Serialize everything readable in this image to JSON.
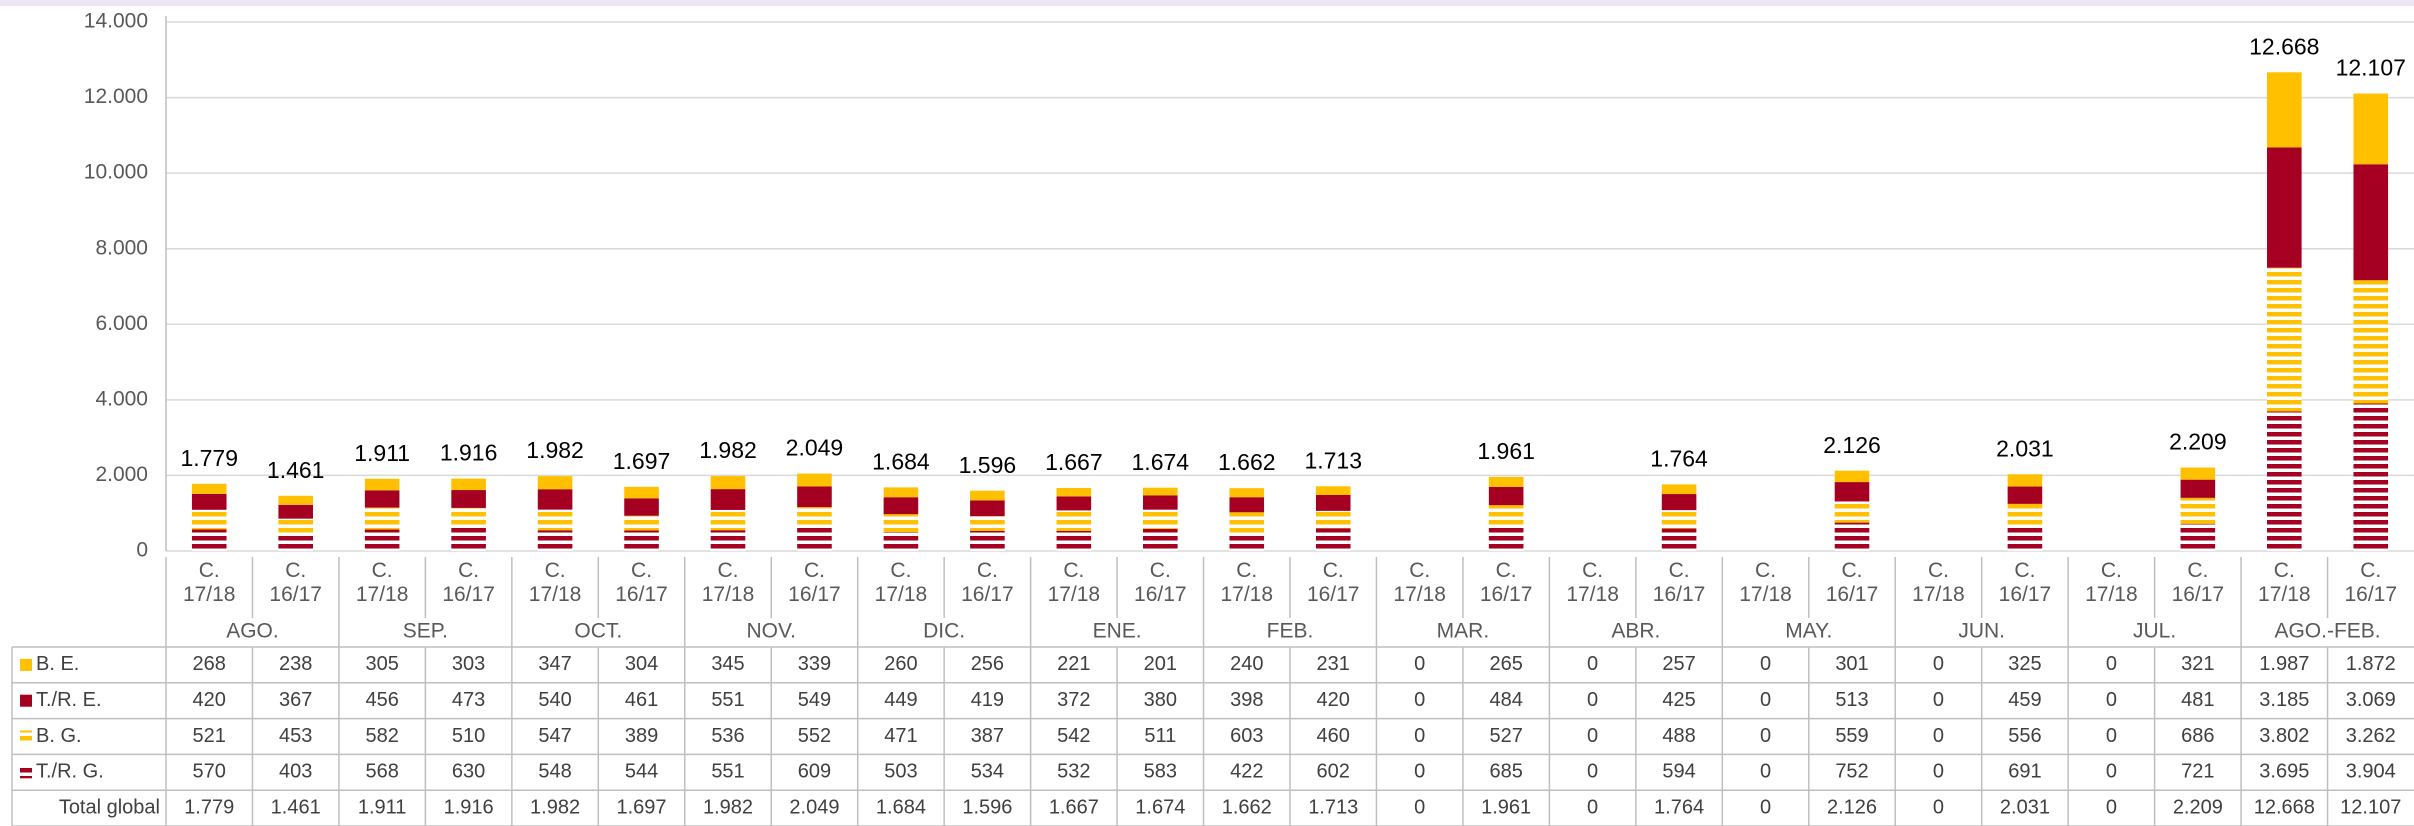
{
  "chart_data": {
    "type": "stacked_bar",
    "categories": [
      "C. 17/18",
      "C. 16/17",
      "C. 17/18",
      "C. 16/17",
      "C. 17/18",
      "C. 16/17",
      "C. 17/18",
      "C. 16/17",
      "C. 17/18",
      "C. 16/17",
      "C. 17/18",
      "C. 16/17",
      "C. 17/18",
      "C. 16/17",
      "C. 17/18",
      "C. 16/17",
      "C. 17/18",
      "C. 16/17",
      "C. 17/18",
      "C. 16/17",
      "C. 17/18",
      "C. 16/17",
      "C. 17/18",
      "C. 16/17",
      "C. 17/18",
      "C. 16/17"
    ],
    "groups": [
      "AGO.",
      "SEP.",
      "OCT.",
      "NOV.",
      "DIC.",
      "ENE.",
      "FEB.",
      "MAR.",
      "ABR.",
      "MAY.",
      "JUN.",
      "JUL.",
      "AGO.-FEB."
    ],
    "series": [
      {
        "name": "B. E.",
        "color": "#FFC000",
        "hatch": "none",
        "values": [
          268,
          238,
          305,
          303,
          347,
          304,
          345,
          339,
          260,
          256,
          221,
          201,
          240,
          231,
          0,
          265,
          0,
          257,
          0,
          301,
          0,
          325,
          0,
          321,
          1987,
          1872
        ],
        "value_labels": [
          "268",
          "238",
          "305",
          "303",
          "347",
          "304",
          "345",
          "339",
          "260",
          "256",
          "221",
          "201",
          "240",
          "231",
          "0",
          "265",
          "0",
          "257",
          "0",
          "301",
          "0",
          "325",
          "0",
          "321",
          "1.987",
          "1.872"
        ]
      },
      {
        "name": "T./R. E.",
        "color": "#A50021",
        "hatch": "none",
        "values": [
          420,
          367,
          456,
          473,
          540,
          461,
          551,
          549,
          449,
          419,
          372,
          380,
          398,
          420,
          0,
          484,
          0,
          425,
          0,
          513,
          0,
          459,
          0,
          481,
          3185,
          3069
        ],
        "value_labels": [
          "420",
          "367",
          "456",
          "473",
          "540",
          "461",
          "551",
          "549",
          "449",
          "419",
          "372",
          "380",
          "398",
          "420",
          "0",
          "484",
          "0",
          "425",
          "0",
          "513",
          "0",
          "459",
          "0",
          "481",
          "3.185",
          "3.069"
        ]
      },
      {
        "name": "B. G.",
        "color": "#FFC000",
        "hatch": "horizontal",
        "values": [
          521,
          453,
          582,
          510,
          547,
          389,
          536,
          552,
          471,
          387,
          542,
          511,
          603,
          460,
          0,
          527,
          0,
          488,
          0,
          559,
          0,
          556,
          0,
          686,
          3802,
          3262
        ],
        "value_labels": [
          "521",
          "453",
          "582",
          "510",
          "547",
          "389",
          "536",
          "552",
          "471",
          "387",
          "542",
          "511",
          "603",
          "460",
          "0",
          "527",
          "0",
          "488",
          "0",
          "559",
          "0",
          "556",
          "0",
          "686",
          "3.802",
          "3.262"
        ]
      },
      {
        "name": "T./R. G.",
        "color": "#A50021",
        "hatch": "horizontal",
        "values": [
          570,
          403,
          568,
          630,
          548,
          544,
          551,
          609,
          503,
          534,
          532,
          583,
          422,
          602,
          0,
          685,
          0,
          594,
          0,
          752,
          0,
          691,
          0,
          721,
          3695,
          3904
        ],
        "value_labels": [
          "570",
          "403",
          "568",
          "630",
          "548",
          "544",
          "551",
          "609",
          "503",
          "534",
          "532",
          "583",
          "422",
          "602",
          "0",
          "685",
          "0",
          "594",
          "0",
          "752",
          "0",
          "691",
          "0",
          "721",
          "3.695",
          "3.904"
        ]
      }
    ],
    "total": {
      "name": "Total global",
      "values": [
        1779,
        1461,
        1911,
        1916,
        1982,
        1697,
        1982,
        2049,
        1684,
        1596,
        1667,
        1674,
        1662,
        1713,
        0,
        1961,
        0,
        1764,
        0,
        2126,
        0,
        2031,
        0,
        2209,
        12668,
        12107
      ],
      "value_labels": [
        "1.779",
        "1.461",
        "1.911",
        "1.916",
        "1.982",
        "1.697",
        "1.982",
        "2.049",
        "1.684",
        "1.596",
        "1.667",
        "1.674",
        "1.662",
        "1.713",
        "0",
        "1.961",
        "0",
        "1.764",
        "0",
        "2.126",
        "0",
        "2.031",
        "0",
        "2.209",
        "12.668",
        "12.107"
      ]
    },
    "ylim": [
      0,
      14000
    ],
    "yticks": [
      0,
      {
        "value": 2000,
        "label": "2.000"
      },
      {
        "value": 4000,
        "label": "4.000"
      },
      {
        "value": 6000,
        "label": "6.000"
      },
      {
        "value": 8000,
        "label": "8.000"
      },
      {
        "value": 10000,
        "label": "10.000"
      },
      {
        "value": 12000,
        "label": "12.000"
      },
      {
        "value": 14000,
        "label": "14.000"
      }
    ],
    "grid": true
  }
}
